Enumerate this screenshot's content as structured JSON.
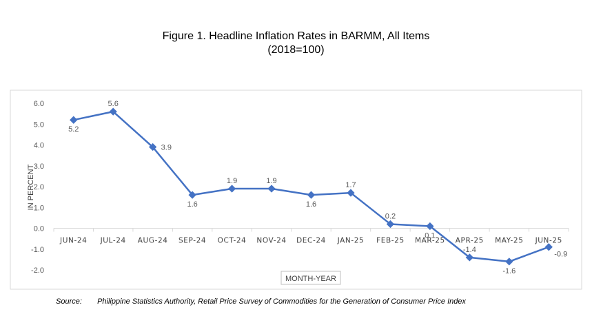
{
  "chart_data": {
    "type": "line",
    "title": "Figure 1. Headline Inflation Rates in BARMM, All Items",
    "subtitle": "(2018=100)",
    "xlabel": "MONTH-YEAR",
    "ylabel": "IN PERCENT",
    "ylim": [
      -2.0,
      6.0
    ],
    "yticks": [
      "6.0",
      "5.0",
      "4.0",
      "3.0",
      "2.0",
      "1.0",
      "0.0",
      "-1.0",
      "-2.0"
    ],
    "categories": [
      "JUN-24",
      "JUL-24",
      "AUG-24",
      "SEP-24",
      "OCT-24",
      "NOV-24",
      "DEC-24",
      "JAN-25",
      "FEB-25",
      "MAR-25",
      "APR-25",
      "MAY-25",
      "JUN-25"
    ],
    "series": [
      {
        "values": [
          5.2,
          5.6,
          3.9,
          1.6,
          1.9,
          1.9,
          1.6,
          1.7,
          0.2,
          0.1,
          -1.4,
          -1.6,
          -0.9
        ],
        "labels": [
          "5.2",
          "5.6",
          "3.9",
          "1.6",
          "1.9",
          "1.9",
          "1.6",
          "1.7",
          "0.2",
          "0.1",
          "-1.4",
          "-1.6",
          "-0.9"
        ],
        "color": "#4472C4"
      }
    ],
    "grid": false,
    "legend": "none"
  },
  "source": {
    "label": "Source:",
    "text": "Philippine Statistics Authority, Retail Price Survey of Commodities for the Generation of Consumer Price Index"
  }
}
